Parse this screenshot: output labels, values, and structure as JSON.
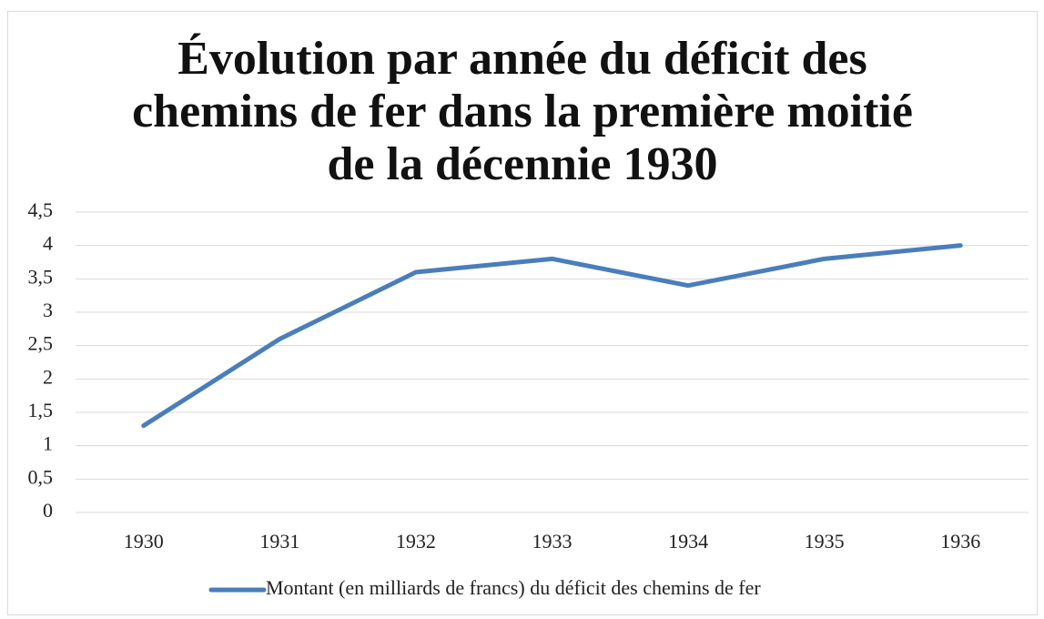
{
  "chart_data": {
    "type": "line",
    "title": "Évolution par année du déficit des chemins de fer dans la première moitié de la décennie 1930",
    "categories": [
      "1930",
      "1931",
      "1932",
      "1933",
      "1934",
      "1935",
      "1936"
    ],
    "series": [
      {
        "name": "Montant (en milliards de francs) du déficit des chemins de fer",
        "color": "#4a7ebb",
        "values": [
          1.3,
          2.6,
          3.6,
          3.8,
          3.4,
          3.8,
          4.0
        ]
      }
    ],
    "ylim": [
      0,
      4.5
    ],
    "yticks": [
      0,
      {
        "value": 0.5,
        "label": "0,5"
      },
      1,
      {
        "value": 1.5,
        "label": "1,5"
      },
      2,
      {
        "value": 2.5,
        "label": "2,5"
      },
      3,
      {
        "value": 3.5,
        "label": "3,5"
      },
      4,
      {
        "value": 4.5,
        "label": "4,5"
      }
    ],
    "grid": true,
    "legend": "bottom"
  }
}
